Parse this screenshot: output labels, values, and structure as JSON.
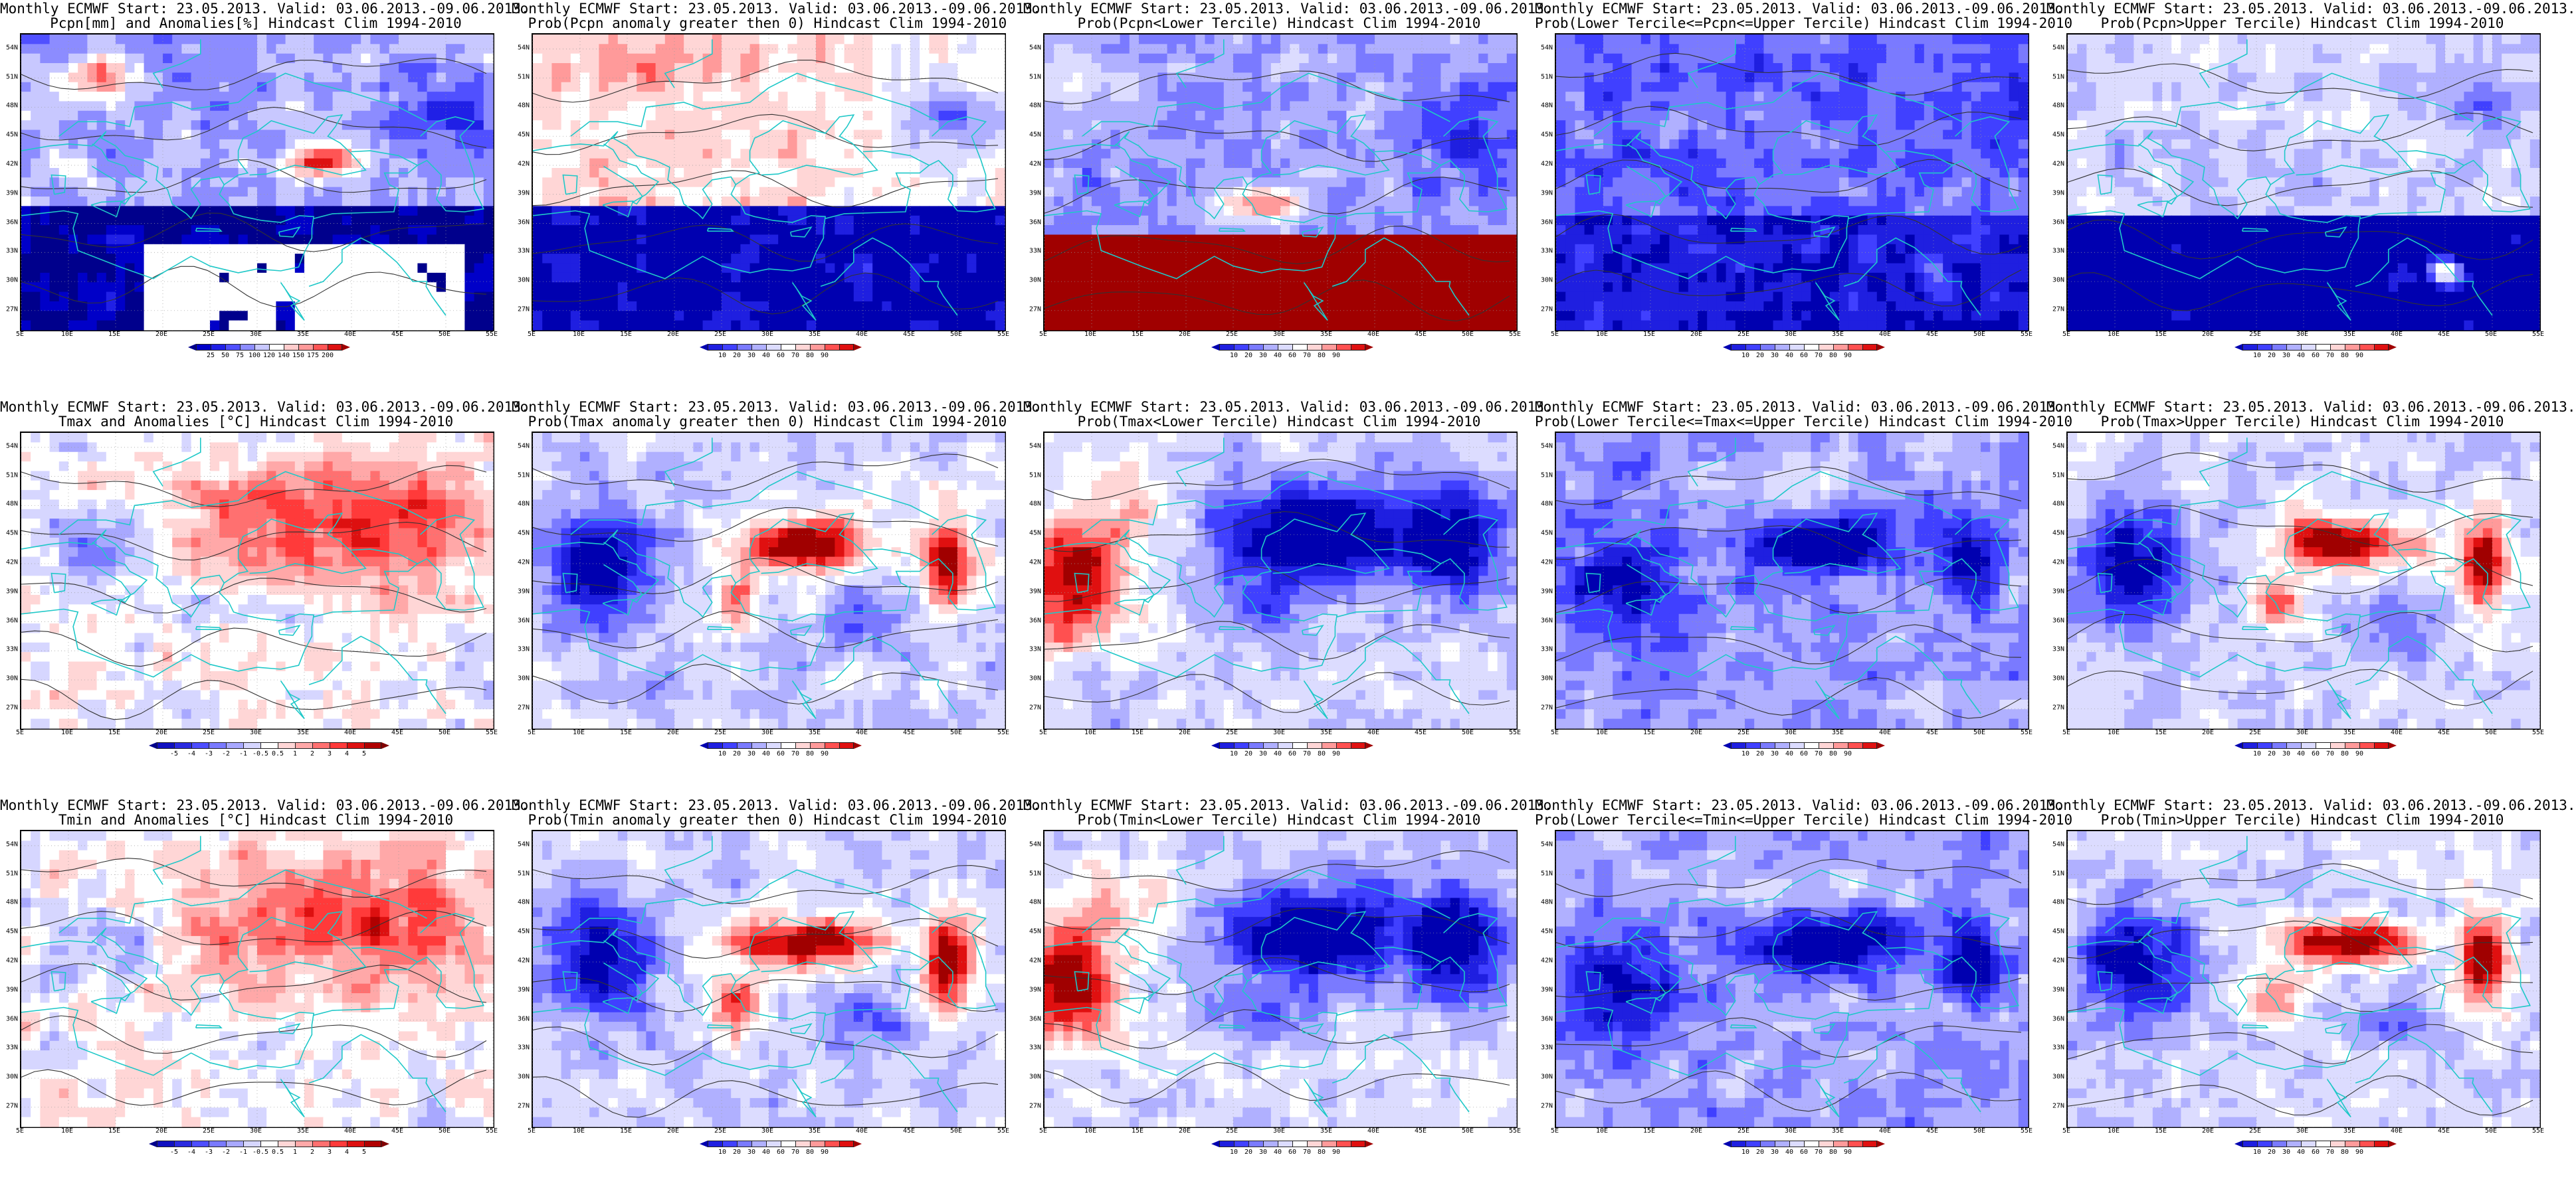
{
  "panels": [
    {
      "title1": "Monthly ECMWF Start: 23.05.2013. Valid: 03.06.2013.-09.06.2013.",
      "title2": "Pcpn[mm] and Anomalies[%] Hindcast Clim 1994-2010",
      "colorbar": "precip_anom",
      "scheme": "precip"
    },
    {
      "title1": "Monthly ECMWF Start: 23.05.2013. Valid: 03.06.2013.-09.06.2013.",
      "title2": "Prob(Pcpn anomaly greater then 0) Hindcast Clim 1994-2010",
      "colorbar": "prob",
      "scheme": "pprob"
    },
    {
      "title1": "Monthly ECMWF Start: 23.05.2013. Valid: 03.06.2013.-09.06.2013.",
      "title2": "Prob(Pcpn<Lower Tercile) Hindcast Clim 1994-2010",
      "colorbar": "prob",
      "scheme": "plower"
    },
    {
      "title1": "Monthly ECMWF Start: 23.05.2013. Valid: 03.06.2013.-09.06.2013.",
      "title2": "Prob(Lower Tercile<=Pcpn<=Upper Tercile) Hindcast Clim 1994-2010",
      "colorbar": "prob",
      "scheme": "pmid"
    },
    {
      "title1": "Monthly ECMWF Start: 23.05.2013. Valid: 03.06.2013.-09.06.2013.",
      "title2": "Prob(Pcpn>Upper Tercile) Hindcast Clim 1994-2010",
      "colorbar": "prob",
      "scheme": "pupper"
    },
    {
      "title1": "Monthly ECMWF Start: 23.05.2013. Valid: 03.06.2013.-09.06.2013.",
      "title2": "Tmax and Anomalies [°C] Hindcast Clim 1994-2010",
      "colorbar": "temp_anom",
      "scheme": "tanom"
    },
    {
      "title1": "Monthly ECMWF Start: 23.05.2013. Valid: 03.06.2013.-09.06.2013.",
      "title2": "Prob(Tmax anomaly greater then 0) Hindcast Clim 1994-2010",
      "colorbar": "prob",
      "scheme": "twarm"
    },
    {
      "title1": "Monthly ECMWF Start: 23.05.2013. Valid: 03.06.2013.-09.06.2013.",
      "title2": "Prob(Tmax<Lower Tercile) Hindcast Clim 1994-2010",
      "colorbar": "prob",
      "scheme": "tlower"
    },
    {
      "title1": "Monthly ECMWF Start: 23.05.2013. Valid: 03.06.2013.-09.06.2013.",
      "title2": "Prob(Lower Tercile<=Tmax<=Upper Tercile) Hindcast Clim 1994-2010",
      "colorbar": "prob",
      "scheme": "tmid"
    },
    {
      "title1": "Monthly ECMWF Start: 23.05.2013. Valid: 03.06.2013.-09.06.2013.",
      "title2": "Prob(Tmax>Upper Tercile) Hindcast Clim 1994-2010",
      "colorbar": "prob",
      "scheme": "twarm"
    },
    {
      "title1": "Monthly ECMWF Start: 23.05.2013. Valid: 03.06.2013.-09.06.2013.",
      "title2": "Tmin and Anomalies [°C] Hindcast Clim 1994-2010",
      "colorbar": "temp_anom",
      "scheme": "tanom"
    },
    {
      "title1": "Monthly ECMWF Start: 23.05.2013. Valid: 03.06.2013.-09.06.2013.",
      "title2": "Prob(Tmin anomaly greater then 0) Hindcast Clim 1994-2010",
      "colorbar": "prob",
      "scheme": "twarm"
    },
    {
      "title1": "Monthly ECMWF Start: 23.05.2013. Valid: 03.06.2013.-09.06.2013.",
      "title2": "Prob(Tmin<Lower Tercile) Hindcast Clim 1994-2010",
      "colorbar": "prob",
      "scheme": "tlower"
    },
    {
      "title1": "Monthly ECMWF Start: 23.05.2013. Valid: 03.06.2013.-09.06.2013.",
      "title2": "Prob(Lower Tercile<=Tmin<=Upper Tercile) Hindcast Clim 1994-2010",
      "colorbar": "prob",
      "scheme": "tmid"
    },
    {
      "title1": "Monthly ECMWF Start: 23.05.2013. Valid: 03.06.2013.-09.06.2013.",
      "title2": "Prob(Tmin>Upper Tercile) Hindcast Clim 1994-2010",
      "colorbar": "prob",
      "scheme": "twarm"
    }
  ],
  "lat_labels": [
    "54N",
    "51N",
    "48N",
    "45N",
    "42N",
    "39N",
    "36N",
    "33N",
    "30N",
    "27N"
  ],
  "lat_values": [
    54,
    51,
    48,
    45,
    42,
    39,
    36,
    33,
    30,
    27
  ],
  "lon_labels": [
    "5E",
    "10E",
    "15E",
    "20E",
    "25E",
    "30E",
    "35E",
    "40E",
    "45E",
    "50E",
    "55E"
  ],
  "lon_values": [
    5,
    10,
    15,
    20,
    25,
    30,
    35,
    40,
    45,
    50,
    55
  ],
  "lat_range": [
    25,
    55.5
  ],
  "lon_range": [
    5,
    55
  ],
  "colorbars": {
    "prob": {
      "labels": [
        "10",
        "20",
        "30",
        "40",
        "60",
        "70",
        "80",
        "90"
      ],
      "colors": [
        "#1f1fe0",
        "#4040ff",
        "#7a7aff",
        "#b0b0ff",
        "#dcdcff",
        "#ffffff",
        "#ffd6d6",
        "#ff9a9a",
        "#ff5050",
        "#e01010"
      ],
      "under": "#0000b0",
      "over": "#a00000"
    },
    "precip_anom": {
      "labels": [
        "25",
        "50",
        "75",
        "100",
        "120",
        "140",
        "150",
        "175",
        "200"
      ],
      "colors": [
        "#0000c8",
        "#2020e6",
        "#5050ff",
        "#8c8cff",
        "#c8c8ff",
        "#ffffff",
        "#ffcccc",
        "#ff9999",
        "#ff5555",
        "#dd1111"
      ],
      "under": "#00008c",
      "over": "#a00000"
    },
    "temp_anom": {
      "labels": [
        "-5",
        "-4",
        "-3",
        "-2",
        "-1",
        "-0.5",
        "0.5",
        "1",
        "2",
        "3",
        "4",
        "5"
      ],
      "colors": [
        "#1010c0",
        "#2a2ae0",
        "#4d4dff",
        "#7a7aff",
        "#a8a8ff",
        "#d6d6ff",
        "#ffffff",
        "#ffd6d6",
        "#ffa8a8",
        "#ff7070",
        "#ff3a3a",
        "#dd1010",
        "#b00000"
      ],
      "under": "#00008c",
      "over": "#800000"
    }
  }
}
